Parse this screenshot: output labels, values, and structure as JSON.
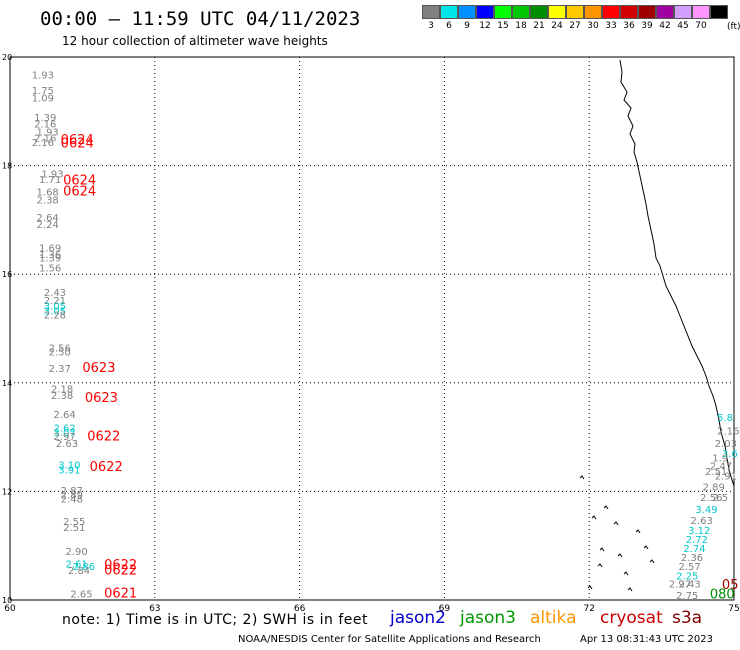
{
  "title": "00:00 – 11:59 UTC 04/11/2023",
  "subtitle": "12 hour collection of altimeter wave heights",
  "legend": {
    "unit": "(ft)",
    "items": [
      {
        "color": "#808080",
        "label": "3"
      },
      {
        "color": "#00e6e6",
        "label": "6"
      },
      {
        "color": "#0090ff",
        "label": "9"
      },
      {
        "color": "#0000ff",
        "label": "12"
      },
      {
        "color": "#00ff00",
        "label": "15"
      },
      {
        "color": "#00c800",
        "label": "18"
      },
      {
        "color": "#008c00",
        "label": "21"
      },
      {
        "color": "#ffff00",
        "label": "24"
      },
      {
        "color": "#ffc800",
        "label": "27"
      },
      {
        "color": "#ff9600",
        "label": "30"
      },
      {
        "color": "#ff0000",
        "label": "33"
      },
      {
        "color": "#d20000",
        "label": "36"
      },
      {
        "color": "#a00000",
        "label": "39"
      },
      {
        "color": "#a000a0",
        "label": "42"
      },
      {
        "color": "#d2a0ff",
        "label": "45"
      },
      {
        "color": "#ff96ff",
        "label": "70"
      },
      {
        "color": "#000000",
        "label": ""
      }
    ]
  },
  "map": {
    "lon_range": [
      60,
      75
    ],
    "lat_range": [
      10,
      20
    ],
    "lon_ticks": [
      60,
      63,
      66,
      69,
      72,
      75
    ],
    "lat_ticks": [
      10,
      12,
      14,
      16,
      18,
      20
    ]
  },
  "observations": [
    {
      "lon": 60.45,
      "lat": 19.6,
      "text": "1.93",
      "color": "#808080"
    },
    {
      "lon": 60.45,
      "lat": 19.32,
      "text": "1.75",
      "color": "#808080"
    },
    {
      "lon": 60.45,
      "lat": 19.18,
      "text": "1.09",
      "color": "#808080"
    },
    {
      "lon": 60.5,
      "lat": 18.82,
      "text": "1.39",
      "color": "#808080"
    },
    {
      "lon": 60.5,
      "lat": 18.7,
      "text": "2.16",
      "color": "#808080"
    },
    {
      "lon": 60.55,
      "lat": 18.55,
      "text": "1.93",
      "color": "#808080"
    },
    {
      "lon": 60.5,
      "lat": 18.44,
      "text": "2.16",
      "color": "#808080"
    },
    {
      "lon": 60.45,
      "lat": 18.36,
      "text": "2.16",
      "color": "#808080"
    },
    {
      "lon": 61.05,
      "lat": 18.4,
      "text": "0624",
      "color": "#ff0000",
      "big": true
    },
    {
      "lon": 61.05,
      "lat": 18.33,
      "text": "0624",
      "color": "#ff0000",
      "big": true
    },
    {
      "lon": 60.65,
      "lat": 17.78,
      "text": "1.93",
      "color": "#808080"
    },
    {
      "lon": 60.6,
      "lat": 17.68,
      "text": "1.71",
      "color": "#808080"
    },
    {
      "lon": 61.1,
      "lat": 17.65,
      "text": "0624",
      "color": "#ff0000",
      "big": true
    },
    {
      "lon": 60.55,
      "lat": 17.45,
      "text": "1.68",
      "color": "#808080"
    },
    {
      "lon": 61.1,
      "lat": 17.45,
      "text": "0624",
      "color": "#ff0000",
      "big": true
    },
    {
      "lon": 60.55,
      "lat": 17.3,
      "text": "2.38",
      "color": "#808080"
    },
    {
      "lon": 60.55,
      "lat": 16.98,
      "text": "2.64",
      "color": "#808080"
    },
    {
      "lon": 60.55,
      "lat": 16.85,
      "text": "2.24",
      "color": "#808080"
    },
    {
      "lon": 60.6,
      "lat": 16.42,
      "text": "1.69",
      "color": "#808080"
    },
    {
      "lon": 60.6,
      "lat": 16.3,
      "text": "1.36",
      "color": "#808080"
    },
    {
      "lon": 60.6,
      "lat": 16.23,
      "text": "1.39",
      "color": "#808080"
    },
    {
      "lon": 60.6,
      "lat": 16.05,
      "text": "1.56",
      "color": "#808080"
    },
    {
      "lon": 60.7,
      "lat": 15.6,
      "text": "2.43",
      "color": "#808080"
    },
    {
      "lon": 60.7,
      "lat": 15.45,
      "text": "2.21",
      "color": "#808080"
    },
    {
      "lon": 60.7,
      "lat": 15.35,
      "text": "3.05",
      "color": "#00c8c8"
    },
    {
      "lon": 60.7,
      "lat": 15.26,
      "text": "3.05",
      "color": "#00c8c8"
    },
    {
      "lon": 60.7,
      "lat": 15.18,
      "text": "2.28",
      "color": "#808080"
    },
    {
      "lon": 60.8,
      "lat": 14.58,
      "text": "2.56",
      "color": "#808080"
    },
    {
      "lon": 60.8,
      "lat": 14.5,
      "text": "2.50",
      "color": "#808080"
    },
    {
      "lon": 60.8,
      "lat": 14.2,
      "text": "2.37",
      "color": "#808080"
    },
    {
      "lon": 61.5,
      "lat": 14.2,
      "text": "0623",
      "color": "#ff0000",
      "big": true
    },
    {
      "lon": 60.85,
      "lat": 13.82,
      "text": "2.18",
      "color": "#808080"
    },
    {
      "lon": 60.85,
      "lat": 13.7,
      "text": "2.38",
      "color": "#808080"
    },
    {
      "lon": 61.55,
      "lat": 13.65,
      "text": "0623",
      "color": "#ff0000",
      "big": true
    },
    {
      "lon": 60.9,
      "lat": 13.35,
      "text": "2.64",
      "color": "#808080"
    },
    {
      "lon": 60.9,
      "lat": 13.1,
      "text": "2.62",
      "color": "#00c8c8"
    },
    {
      "lon": 60.9,
      "lat": 13.02,
      "text": "3.07",
      "color": "#00c8c8"
    },
    {
      "lon": 60.9,
      "lat": 12.95,
      "text": "2.97",
      "color": "#808080"
    },
    {
      "lon": 61.6,
      "lat": 12.94,
      "text": "0622",
      "color": "#ff0000",
      "big": true
    },
    {
      "lon": 60.95,
      "lat": 12.82,
      "text": "2.63",
      "color": "#808080"
    },
    {
      "lon": 61.0,
      "lat": 12.42,
      "text": "3.10",
      "color": "#00c8c8"
    },
    {
      "lon": 61.0,
      "lat": 12.33,
      "text": "3.91",
      "color": "#00c8c8"
    },
    {
      "lon": 61.65,
      "lat": 12.38,
      "text": "0622",
      "color": "#ff0000",
      "big": true
    },
    {
      "lon": 61.05,
      "lat": 11.95,
      "text": "2.87",
      "color": "#808080"
    },
    {
      "lon": 61.05,
      "lat": 11.87,
      "text": "2.89",
      "color": "#808080"
    },
    {
      "lon": 61.05,
      "lat": 11.8,
      "text": "2.48",
      "color": "#808080"
    },
    {
      "lon": 61.1,
      "lat": 11.38,
      "text": "2.55",
      "color": "#808080"
    },
    {
      "lon": 61.1,
      "lat": 11.27,
      "text": "2.51",
      "color": "#808080"
    },
    {
      "lon": 61.15,
      "lat": 10.83,
      "text": "2.90",
      "color": "#808080"
    },
    {
      "lon": 61.15,
      "lat": 10.6,
      "text": "2.61",
      "color": "#00c8c8"
    },
    {
      "lon": 61.3,
      "lat": 10.55,
      "text": "2.86",
      "color": "#00c8c8"
    },
    {
      "lon": 61.2,
      "lat": 10.48,
      "text": "2.84",
      "color": "#808080"
    },
    {
      "lon": 61.95,
      "lat": 10.57,
      "text": "0622",
      "color": "#ff0000",
      "big": true
    },
    {
      "lon": 61.95,
      "lat": 10.47,
      "text": "0622",
      "color": "#ff0000",
      "big": true
    },
    {
      "lon": 61.25,
      "lat": 10.05,
      "text": "2.65",
      "color": "#808080"
    },
    {
      "lon": 61.95,
      "lat": 10.05,
      "text": "0621",
      "color": "#ff0000",
      "big": true
    },
    {
      "lon": 74.65,
      "lat": 13.3,
      "text": "5.8",
      "color": "#00c8c8"
    },
    {
      "lon": 74.65,
      "lat": 13.05,
      "text": "2.16",
      "color": "#808080"
    },
    {
      "lon": 74.6,
      "lat": 12.82,
      "text": "2.03",
      "color": "#808080"
    },
    {
      "lon": 74.75,
      "lat": 12.63,
      "text": "3.6",
      "color": "#00c8c8"
    },
    {
      "lon": 74.55,
      "lat": 12.55,
      "text": "1.9",
      "color": "#808080"
    },
    {
      "lon": 74.5,
      "lat": 12.4,
      "text": "2.47",
      "color": "#808080"
    },
    {
      "lon": 74.4,
      "lat": 12.3,
      "text": "2.51",
      "color": "#808080"
    },
    {
      "lon": 74.6,
      "lat": 12.22,
      "text": "2.91",
      "color": "#808080"
    },
    {
      "lon": 74.35,
      "lat": 12.02,
      "text": "2.89",
      "color": "#808080"
    },
    {
      "lon": 74.3,
      "lat": 11.82,
      "text": "2.56",
      "color": "#808080"
    },
    {
      "lon": 74.55,
      "lat": 11.82,
      "text": "2.5",
      "color": "#808080"
    },
    {
      "lon": 74.2,
      "lat": 11.6,
      "text": "3.49",
      "color": "#00c8c8"
    },
    {
      "lon": 74.1,
      "lat": 11.4,
      "text": "2.63",
      "color": "#808080"
    },
    {
      "lon": 74.05,
      "lat": 11.22,
      "text": "3.12",
      "color": "#00c8c8"
    },
    {
      "lon": 74.0,
      "lat": 11.05,
      "text": "2.72",
      "color": "#00c8c8"
    },
    {
      "lon": 73.95,
      "lat": 10.88,
      "text": "2.74",
      "color": "#00c8c8"
    },
    {
      "lon": 73.9,
      "lat": 10.72,
      "text": "2.36",
      "color": "#808080"
    },
    {
      "lon": 73.85,
      "lat": 10.55,
      "text": "2.57",
      "color": "#808080"
    },
    {
      "lon": 73.8,
      "lat": 10.38,
      "text": "2.25",
      "color": "#00c8c8"
    },
    {
      "lon": 73.85,
      "lat": 10.23,
      "text": "2.43",
      "color": "#808080"
    },
    {
      "lon": 73.65,
      "lat": 10.23,
      "text": "2.97",
      "color": "#808080"
    },
    {
      "lon": 73.8,
      "lat": 10.02,
      "text": "2.75",
      "color": "#808080"
    },
    {
      "lon": 74.75,
      "lat": 10.2,
      "text": "05",
      "color": "#a00000",
      "big": true
    },
    {
      "lon": 74.5,
      "lat": 10.03,
      "text": "080",
      "color": "#008c00",
      "big": true
    }
  ],
  "note": "note: 1) Time is in UTC; 2) SWH is in feet",
  "satellites": [
    {
      "name": "jason2",
      "color": "#0000cc"
    },
    {
      "name": "jason3",
      "color": "#009600"
    },
    {
      "name": "altika",
      "color": "#ff9600"
    },
    {
      "name": "cryosat",
      "color": "#cc0000"
    },
    {
      "name": "s3a",
      "color": "#800000"
    }
  ],
  "footer_left": "NOAA/NESDIS Center for Satellite Applications and Research",
  "footer_right": "Apr 13 08:31:43 UTC 2023"
}
